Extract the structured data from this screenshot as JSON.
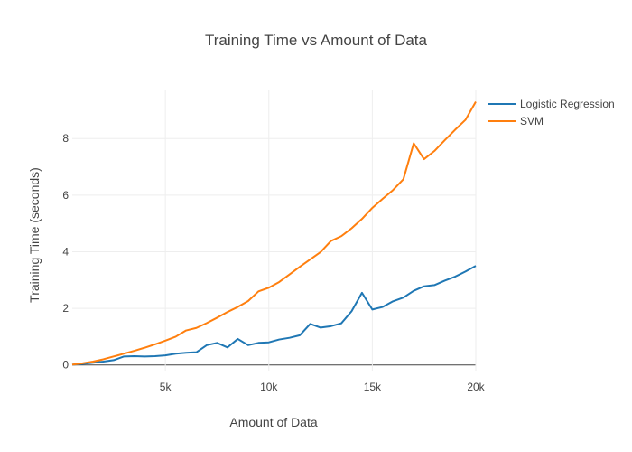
{
  "chart_data": {
    "type": "line",
    "title": "Training Time vs Amount of Data",
    "xlabel": "Amount of Data",
    "ylabel": "Training Time (seconds)",
    "xlim": [
      500,
      20000
    ],
    "ylim": [
      -0.2,
      9.7
    ],
    "x_ticks": [
      {
        "value": 5000,
        "label": "5k"
      },
      {
        "value": 10000,
        "label": "10k"
      },
      {
        "value": 15000,
        "label": "15k"
      },
      {
        "value": 20000,
        "label": "20k"
      }
    ],
    "y_ticks": [
      {
        "value": 0,
        "label": "0"
      },
      {
        "value": 2,
        "label": "2"
      },
      {
        "value": 4,
        "label": "4"
      },
      {
        "value": 6,
        "label": "6"
      },
      {
        "value": 8,
        "label": "8"
      }
    ],
    "grid": true,
    "legend_position": "top-right",
    "x": [
      500,
      1000,
      1500,
      2000,
      2500,
      3000,
      3500,
      4000,
      4500,
      5000,
      5500,
      6000,
      6500,
      7000,
      7500,
      8000,
      8500,
      9000,
      9500,
      10000,
      10500,
      11000,
      11500,
      12000,
      12500,
      13000,
      13500,
      14000,
      14500,
      15000,
      15500,
      16000,
      16500,
      17000,
      17500,
      18000,
      18500,
      19000,
      19500,
      20000
    ],
    "series": [
      {
        "name": "Logistic Regression",
        "color": "#1f77b4",
        "values": [
          0.01,
          0.04,
          0.08,
          0.12,
          0.17,
          0.3,
          0.31,
          0.3,
          0.31,
          0.34,
          0.4,
          0.43,
          0.45,
          0.7,
          0.78,
          0.62,
          0.92,
          0.7,
          0.78,
          0.8,
          0.9,
          0.96,
          1.05,
          1.45,
          1.32,
          1.37,
          1.47,
          1.9,
          2.55,
          1.96,
          2.05,
          2.25,
          2.38,
          2.62,
          2.78,
          2.82,
          2.98,
          3.12,
          3.3,
          3.5
        ]
      },
      {
        "name": "SVM",
        "color": "#ff7f0e",
        "values": [
          0.01,
          0.06,
          0.12,
          0.2,
          0.3,
          0.4,
          0.5,
          0.61,
          0.73,
          0.86,
          1.0,
          1.22,
          1.31,
          1.48,
          1.67,
          1.87,
          2.05,
          2.26,
          2.6,
          2.73,
          2.93,
          3.2,
          3.47,
          3.73,
          3.99,
          4.38,
          4.55,
          4.83,
          5.16,
          5.55,
          5.87,
          6.18,
          6.56,
          7.83,
          7.27,
          7.56,
          7.94,
          8.31,
          8.66,
          9.3
        ]
      }
    ]
  }
}
